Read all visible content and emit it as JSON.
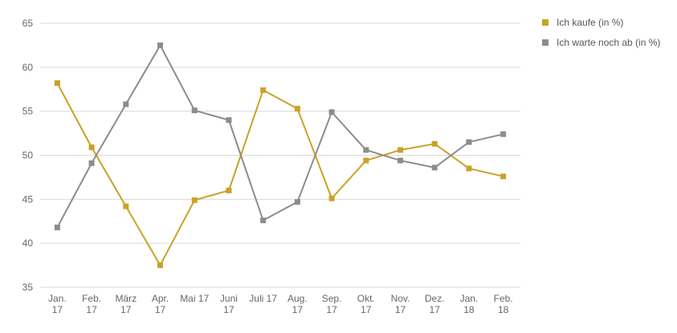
{
  "chart_data": {
    "type": "line",
    "categories": [
      [
        "Jan.",
        "17"
      ],
      [
        "Feb.",
        "17"
      ],
      [
        "März",
        "17"
      ],
      [
        "Apr.",
        "17"
      ],
      [
        "Mai 17"
      ],
      [
        "Juni",
        "17"
      ],
      [
        "Juli 17"
      ],
      [
        "Aug.",
        "17"
      ],
      [
        "Sep.",
        "17"
      ],
      [
        "Okt.",
        "17"
      ],
      [
        "Nov.",
        "17"
      ],
      [
        "Dez.",
        "17"
      ],
      [
        "Jan.",
        "18"
      ],
      [
        "Feb.",
        "18"
      ]
    ],
    "series": [
      {
        "name": "Ich kaufe (in %)",
        "color": "#c9a227",
        "values": [
          58.2,
          50.9,
          44.2,
          37.5,
          44.9,
          46.0,
          57.4,
          55.3,
          45.1,
          49.4,
          50.6,
          51.3,
          48.5,
          47.6
        ]
      },
      {
        "name": "Ich warte noch ab (in %)",
        "color": "#8c8c8c",
        "values": [
          41.8,
          49.1,
          55.8,
          62.5,
          55.1,
          54.0,
          42.6,
          44.7,
          54.9,
          50.6,
          49.4,
          48.6,
          51.5,
          52.4
        ]
      }
    ],
    "ylim": [
      35,
      65
    ],
    "yticks": [
      35,
      40,
      45,
      50,
      55,
      60,
      65
    ],
    "grid": true,
    "legend_position": "top-right"
  }
}
